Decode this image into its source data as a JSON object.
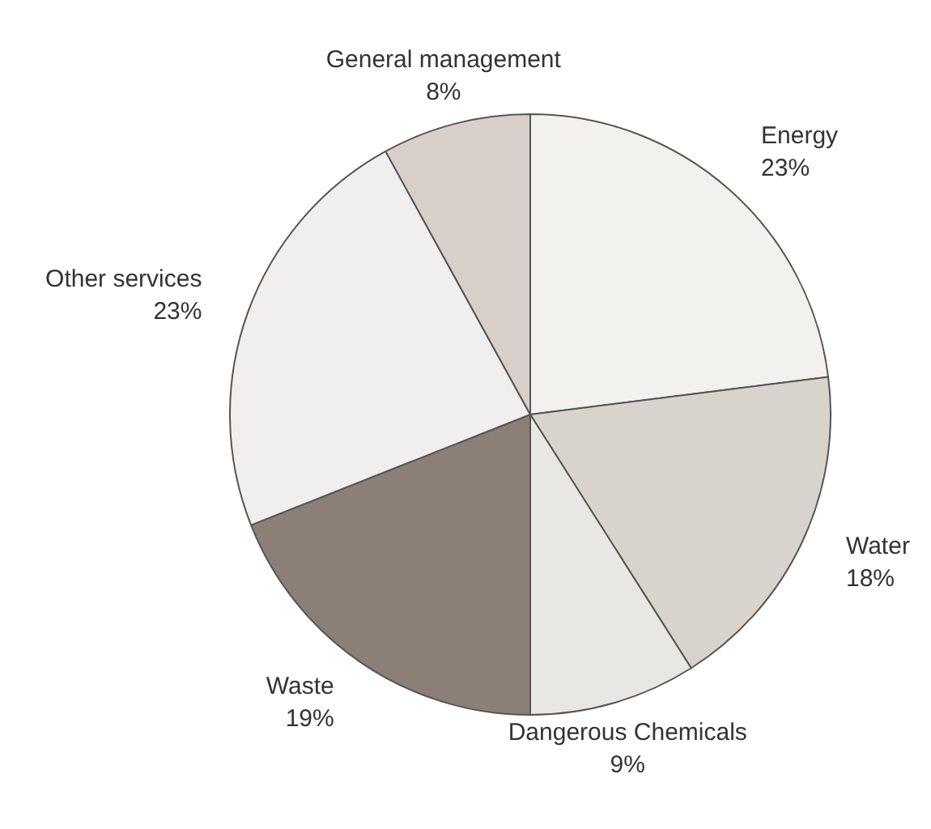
{
  "chart_data": {
    "type": "pie",
    "categories": [
      "Energy",
      "Water",
      "Dangerous Chemicals",
      "Waste",
      "Other services",
      "General management"
    ],
    "values": [
      23,
      18,
      9,
      19,
      23,
      8
    ],
    "colors": [
      "#f3f1ee",
      "#d9d3ce",
      "#e9e7e3",
      "#8b7f78",
      "#f1efed",
      "#d8cfcb"
    ],
    "value_labels": [
      "23%",
      "18%",
      "9%",
      "19%",
      "23%",
      "8%"
    ],
    "legend": false
  }
}
